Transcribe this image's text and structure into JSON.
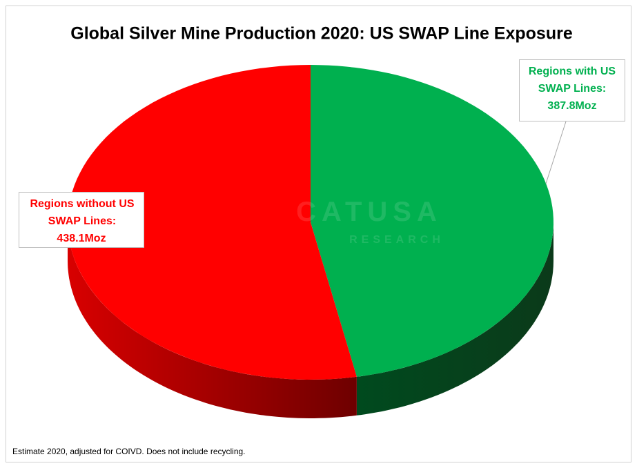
{
  "chart_data": {
    "type": "pie3d",
    "title": "Global Silver Mine Production 2020: US SWAP Line Exposure",
    "categories": [
      "Regions without US SWAP Lines:",
      "Regions with US SWAP Lines:"
    ],
    "values": [
      438.1,
      387.8
    ],
    "value_labels": [
      "438.1Moz",
      "387.8Moz"
    ],
    "colors": [
      "#ff0000",
      "#00b04f"
    ],
    "footnote": "Estimate 2020, adjusted for COIVD. Does not include recycling.",
    "watermark": [
      "CATUSA",
      "RESEARCH"
    ]
  }
}
